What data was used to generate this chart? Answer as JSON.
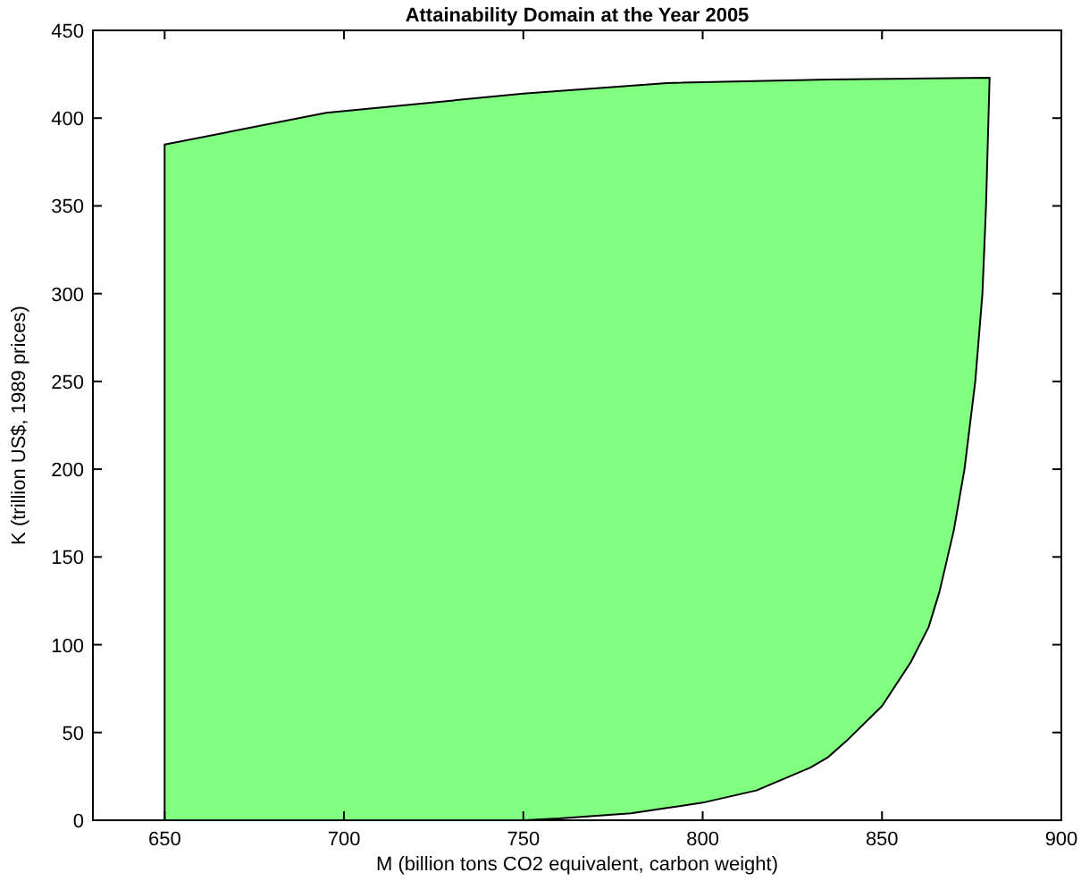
{
  "chart_data": {
    "type": "area",
    "title": "Attainability Domain at the Year 2005",
    "xlabel": "M (billion tons CO2 equivalent, carbon weight)",
    "ylabel": "K (trillion US$, 1989 prices)",
    "series": [
      {
        "color": "#80ff80",
        "x": [
          650,
          695,
          740,
          750,
          760,
          780,
          790,
          800,
          815,
          830,
          835,
          840,
          850,
          858,
          863,
          866,
          870,
          873,
          876,
          878,
          879,
          880,
          835,
          790,
          750,
          695,
          650
        ],
        "values": [
          0,
          0,
          0,
          0,
          1,
          4,
          7,
          10,
          17,
          30,
          36,
          45,
          65,
          90,
          110,
          130,
          165,
          200,
          250,
          300,
          350,
          423,
          422,
          420,
          414,
          403,
          385
        ]
      }
    ],
    "xlim": [
      630,
      900
    ],
    "xticks": [
      650,
      700,
      750,
      800,
      850,
      900
    ],
    "ylim": [
      0,
      450
    ],
    "yticks": [
      0,
      50,
      100,
      150,
      200,
      250,
      300,
      350,
      400,
      450
    ],
    "grid": false
  }
}
